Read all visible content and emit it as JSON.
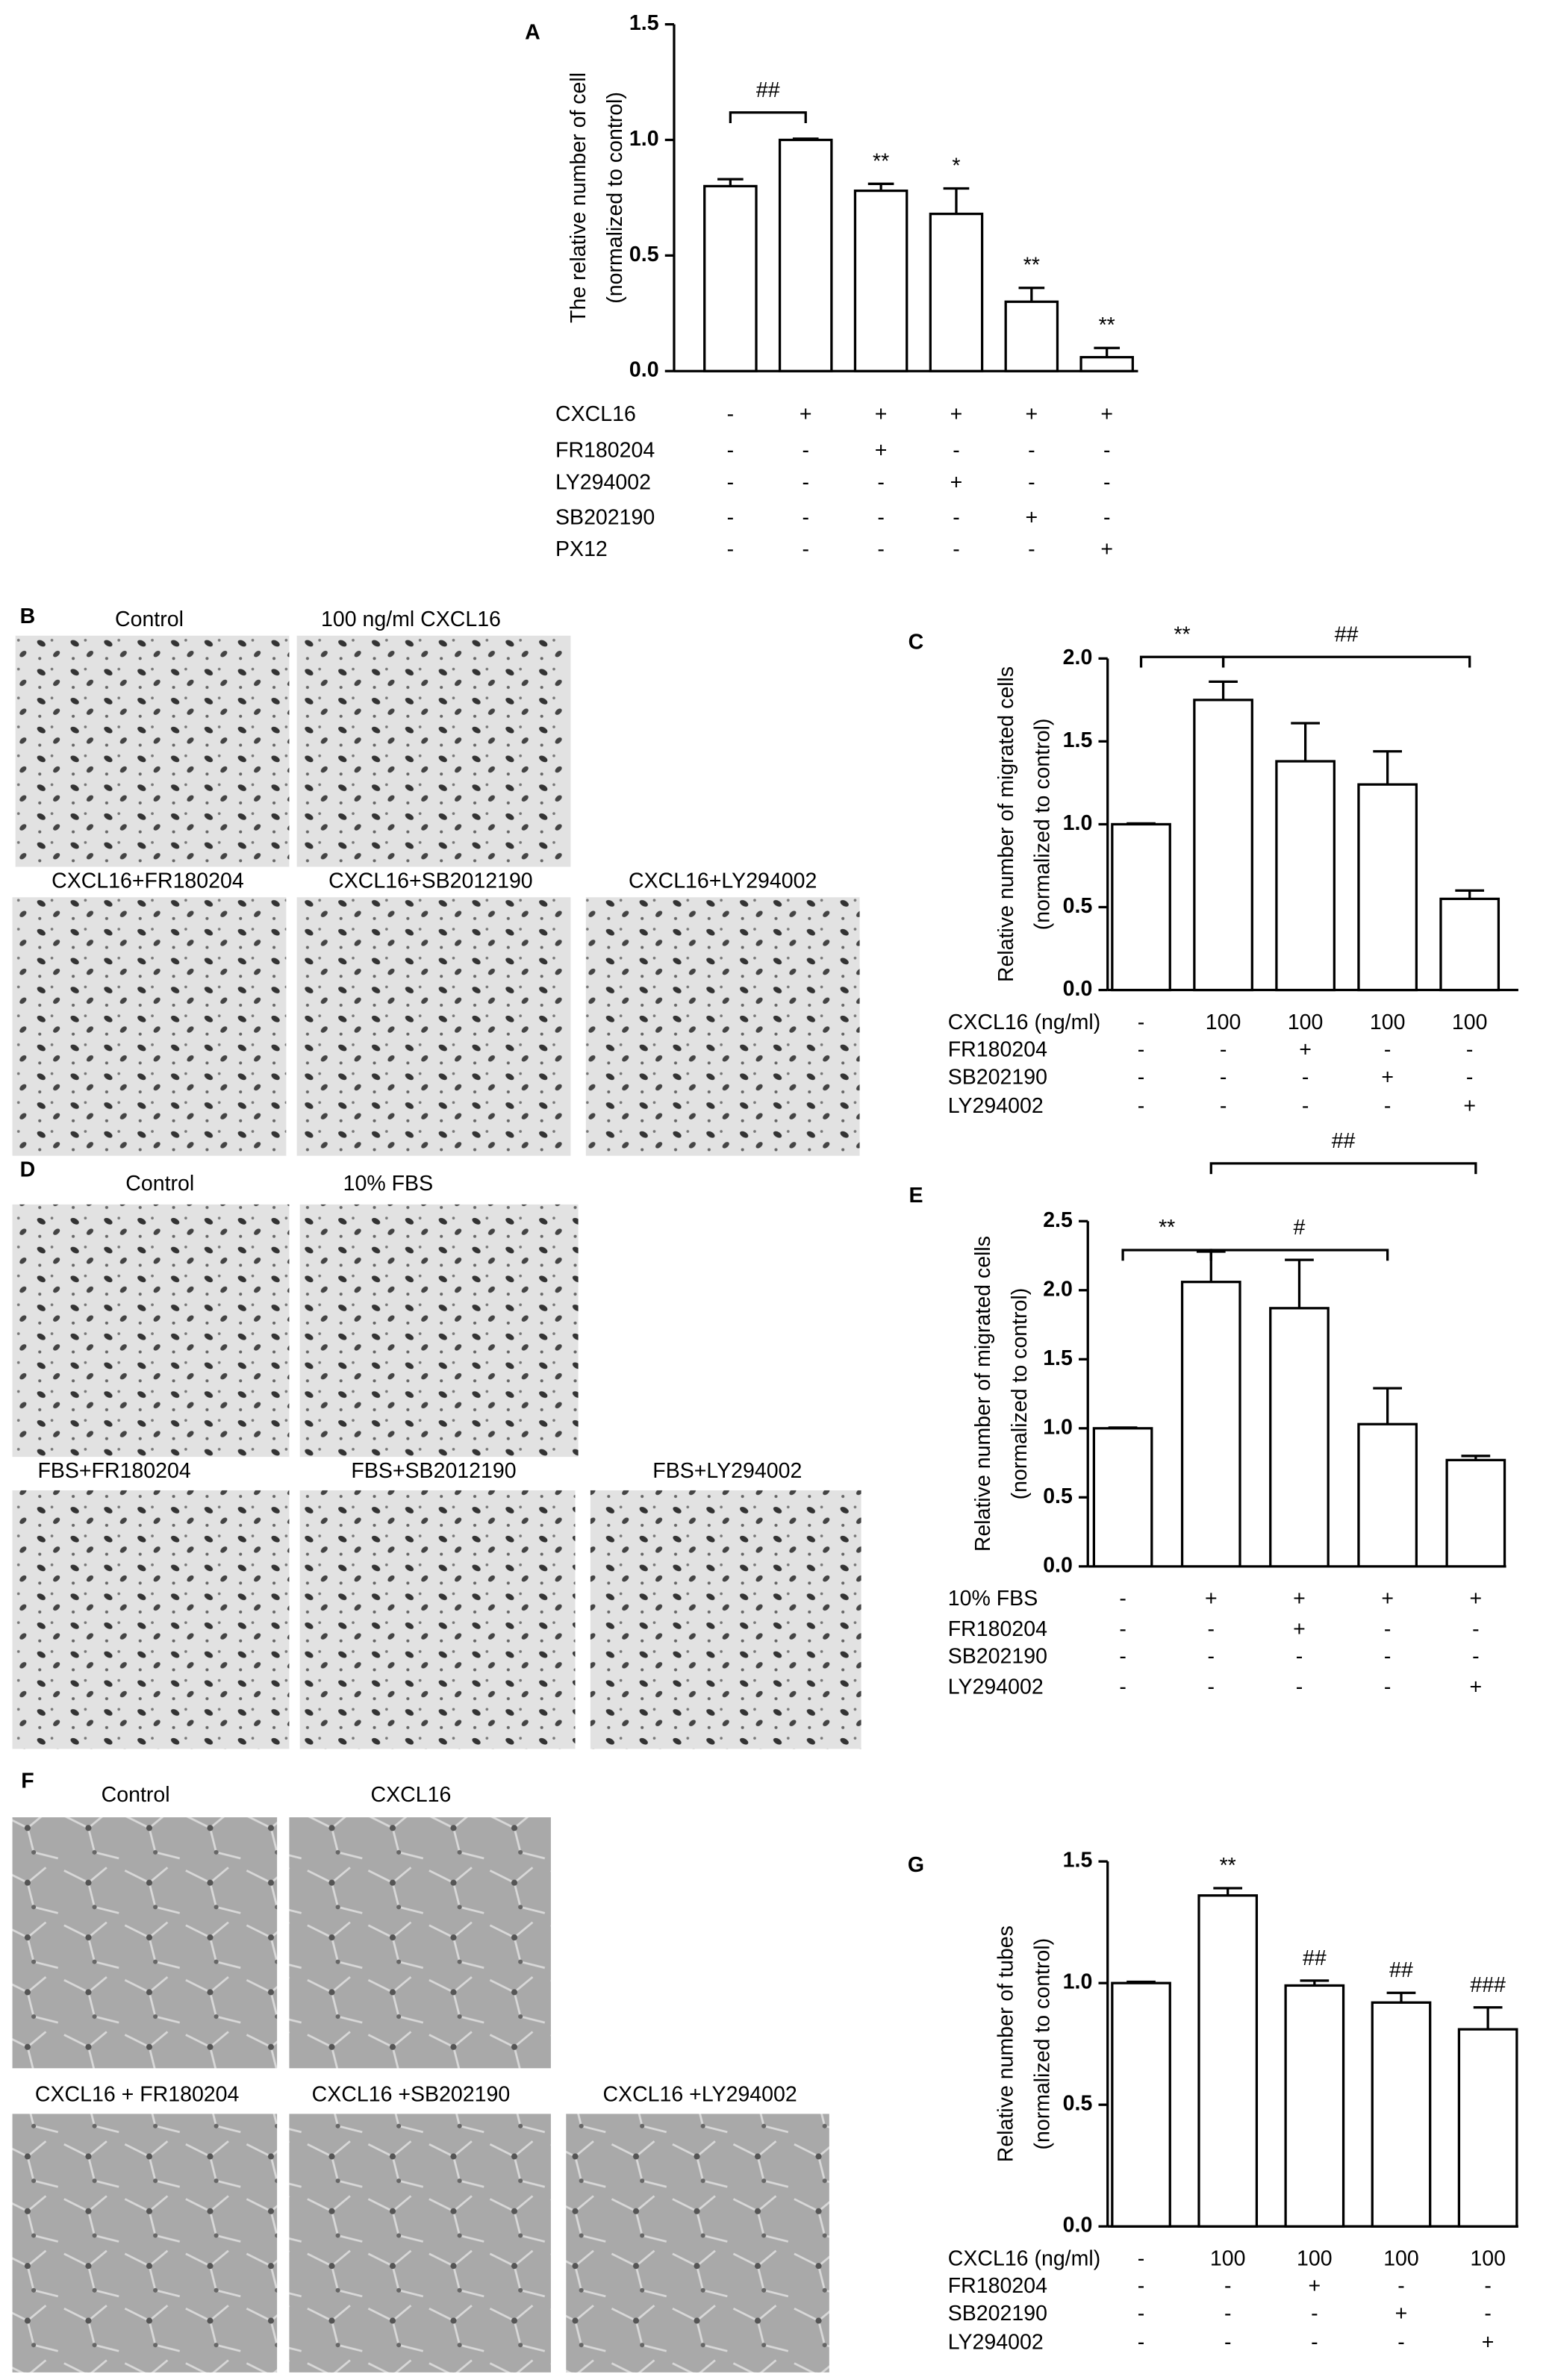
{
  "chart_data": [
    {
      "type": "bar",
      "panel": "A",
      "y_label": [
        "The relative number of cell",
        "(normalized to control)"
      ],
      "categories": [
        null,
        null,
        null,
        null,
        null,
        null
      ],
      "values": [
        0.8,
        1.0,
        0.78,
        0.68,
        0.3,
        0.06
      ],
      "errors": [
        0.03,
        0.005,
        0.03,
        0.11,
        0.06,
        0.04
      ],
      "color": "#ffffff",
      "ylim": [
        0,
        1.5
      ],
      "yticks": [
        {
          "value": 0,
          "label": "0.0"
        },
        0.5,
        {
          "value": 1,
          "label": "1.0"
        },
        1.5
      ],
      "significance": [
        null,
        null,
        "**",
        "*",
        "**",
        "**"
      ],
      "bracket_labels": [
        "##"
      ],
      "conditions": [
        {
          "name": "CXCL16",
          "marks": [
            "-",
            "+",
            "+",
            "+",
            "+",
            "+"
          ]
        },
        {
          "name": "FR180204",
          "marks": [
            "-",
            "-",
            "+",
            "-",
            "-",
            "-"
          ]
        },
        {
          "name": "LY294002",
          "marks": [
            "-",
            "-",
            "-",
            "+",
            "-",
            "-"
          ]
        },
        {
          "name": "SB202190",
          "marks": [
            "-",
            "-",
            "-",
            "-",
            "+",
            "-"
          ]
        },
        {
          "name": "PX12",
          "marks": [
            "-",
            "-",
            "-",
            "-",
            "-",
            "+"
          ]
        }
      ]
    },
    {
      "type": "bar",
      "panel": "C",
      "y_label": [
        "Relative number of migrated cells",
        "(normalized to control)"
      ],
      "categories": [
        null,
        null,
        null,
        null,
        null
      ],
      "values": [
        1.0,
        1.75,
        1.38,
        1.24,
        0.55
      ],
      "errors": [
        0.005,
        0.11,
        0.23,
        0.2,
        0.05
      ],
      "color": "#ffffff",
      "ylim": [
        0,
        2
      ],
      "yticks": [
        {
          "value": 0,
          "label": "0.0"
        },
        0.5,
        {
          "value": 1,
          "label": "1.0"
        },
        1.5,
        {
          "value": 2,
          "label": "2.0"
        }
      ],
      "significance": [
        null,
        null,
        null,
        null,
        null
      ],
      "bracket_labels": [
        "**",
        "##"
      ],
      "conditions": [
        {
          "name": "CXCL16 (ng/ml)",
          "marks": [
            "-",
            "100",
            "100",
            "100",
            "100"
          ]
        },
        {
          "name": "FR180204",
          "marks": [
            "-",
            "-",
            "+",
            "-",
            "-"
          ]
        },
        {
          "name": "SB202190",
          "marks": [
            "-",
            "-",
            "-",
            "+",
            "-"
          ]
        },
        {
          "name": "LY294002",
          "marks": [
            "-",
            "-",
            "-",
            "-",
            "+"
          ]
        }
      ]
    },
    {
      "type": "bar",
      "panel": "E",
      "y_label": [
        "Relative number of migrated cells",
        "(normalized to control)"
      ],
      "categories": [
        null,
        null,
        null,
        null,
        null
      ],
      "values": [
        1.0,
        2.06,
        1.87,
        1.03,
        0.77
      ],
      "errors": [
        0.005,
        0.22,
        0.35,
        0.26,
        0.03
      ],
      "color": "#ffffff",
      "ylim": [
        0,
        2.5
      ],
      "yticks": [
        {
          "value": 0,
          "label": "0.0"
        },
        0.5,
        {
          "value": 1,
          "label": "1.0"
        },
        1.5,
        {
          "value": 2,
          "label": "2.0"
        },
        2.5
      ],
      "significance": [
        null,
        null,
        null,
        null,
        null
      ],
      "bracket_labels": [
        "**",
        "#",
        "##"
      ],
      "conditions": [
        {
          "name": "10% FBS",
          "marks": [
            "-",
            "+",
            "+",
            "+",
            "+"
          ]
        },
        {
          "name": "FR180204",
          "marks": [
            "-",
            "-",
            "+",
            "-",
            "-"
          ]
        },
        {
          "name": "SB202190",
          "marks": [
            "-",
            "-",
            "-",
            "-",
            "-"
          ]
        },
        {
          "name": "LY294002",
          "marks": [
            "-",
            "-",
            "-",
            "-",
            "+"
          ]
        }
      ]
    },
    {
      "type": "bar",
      "panel": "G",
      "y_label": [
        "Relative number of tubes",
        "(normalized to control)"
      ],
      "categories": [
        null,
        null,
        null,
        null,
        null
      ],
      "values": [
        1.0,
        1.36,
        0.99,
        0.92,
        0.81
      ],
      "errors": [
        0.005,
        0.03,
        0.02,
        0.04,
        0.09
      ],
      "color": "#ffffff",
      "ylim": [
        0,
        1.5
      ],
      "yticks": [
        {
          "value": 0,
          "label": "0.0"
        },
        0.5,
        {
          "value": 1,
          "label": "1.0"
        },
        1.5
      ],
      "significance": [
        null,
        "**",
        "##",
        "##",
        "###"
      ],
      "bracket_labels": [],
      "conditions": [
        {
          "name": "CXCL16 (ng/ml)",
          "marks": [
            "-",
            "100",
            "100",
            "100",
            "100"
          ]
        },
        {
          "name": "FR180204",
          "marks": [
            "-",
            "-",
            "+",
            "-",
            "-"
          ]
        },
        {
          "name": "SB202190",
          "marks": [
            "-",
            "-",
            "-",
            "+",
            "-"
          ]
        },
        {
          "name": "LY294002",
          "marks": [
            "-",
            "-",
            "-",
            "-",
            "+"
          ]
        }
      ]
    }
  ],
  "image_panels": [
    {
      "panel": "B",
      "labels": [
        "Control",
        "100 ng/ml CXCL16",
        "CXCL16+FR180204",
        "CXCL16+SB2012190",
        "CXCL16+LY294002"
      ]
    },
    {
      "panel": "D",
      "labels": [
        "Control",
        "10% FBS",
        "FBS+FR180204",
        "FBS+SB2012190",
        "FBS+LY294002"
      ]
    },
    {
      "panel": "F",
      "labels": [
        "Control",
        "CXCL16",
        "CXCL16 + FR180204",
        "CXCL16 +SB202190",
        "CXCL16 +LY294002"
      ]
    }
  ]
}
